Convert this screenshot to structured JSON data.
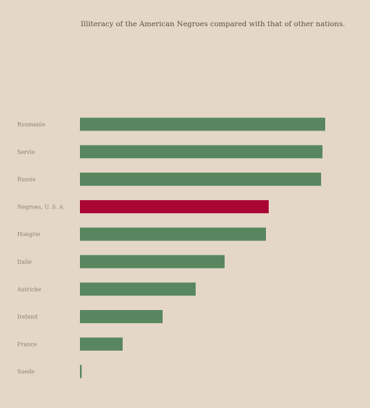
{
  "chart_data": {
    "type": "bar",
    "orientation": "horizontal",
    "title": "Illiteracy of the American Negroes compared with that of other nations.",
    "categories": [
      "Roumanie",
      "Servie",
      "Russie",
      "Negroes, U. S. A.",
      "Hongrie",
      "Italie",
      "Autriche",
      "Ireland",
      "France",
      "Suede"
    ],
    "values": [
      89,
      88,
      87.5,
      68.5,
      67.5,
      52.5,
      42,
      30,
      15.5,
      0.5
    ],
    "xlim": [
      0,
      100
    ],
    "highlight_category": "Negroes, U. S. A.",
    "colors": {
      "default": "#58875f",
      "highlight": "#a90535",
      "background": "#e4d7c7"
    },
    "grid": false,
    "legend": "none"
  }
}
